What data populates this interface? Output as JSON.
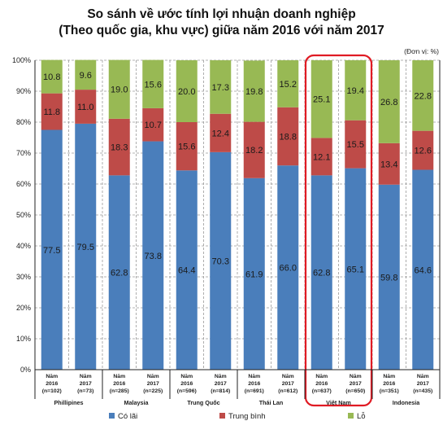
{
  "title_lines": [
    "So sánh về ước tính lợi nhuận doanh nghiệp",
    "(Theo quốc gia, khu vực) giữa năm 2016 với năm 2017"
  ],
  "unit": "(Đơn vị: %)",
  "chart_data": {
    "type": "bar",
    "stacked": true,
    "ylim": [
      0,
      100
    ],
    "yticks": [
      "0%",
      "10%",
      "20%",
      "30%",
      "40%",
      "50%",
      "60%",
      "70%",
      "80%",
      "90%",
      "100%"
    ],
    "grid": true,
    "legend_position": "bottom",
    "highlight_group": "Việt Nam",
    "categories": [
      {
        "year_label": "Năm",
        "year": "2016",
        "n": "(n=102)",
        "group": "Phillipines"
      },
      {
        "year_label": "Năm",
        "year": "2017",
        "n": "(n=73)",
        "group": "Phillipines"
      },
      {
        "year_label": "Năm",
        "year": "2016",
        "n": "(n=285)",
        "group": "Malaysia"
      },
      {
        "year_label": "Năm",
        "year": "2017",
        "n": "(n=225)",
        "group": "Malaysia"
      },
      {
        "year_label": "Năm",
        "year": "2016",
        "n": "(n=596)",
        "group": "Trung Quốc"
      },
      {
        "year_label": "Năm",
        "year": "2017",
        "n": "(n=814)",
        "group": "Trung Quốc"
      },
      {
        "year_label": "Năm",
        "year": "2016",
        "n": "(n=691)",
        "group": "Thái Lan"
      },
      {
        "year_label": "Năm",
        "year": "2017",
        "n": "(n=612)",
        "group": "Thái Lan"
      },
      {
        "year_label": "Năm",
        "year": "2016",
        "n": "(n=637)",
        "group": "Việt Nam"
      },
      {
        "year_label": "Năm",
        "year": "2017",
        "n": "(n=650)",
        "group": "Việt Nam"
      },
      {
        "year_label": "Năm",
        "year": "2016",
        "n": "(n=351)",
        "group": "Indonesia"
      },
      {
        "year_label": "Năm",
        "year": "2017",
        "n": "(n=435)",
        "group": "Indonesia"
      }
    ],
    "groups": [
      "Phillipines",
      "Malaysia",
      "Trung Quốc",
      "Thái Lan",
      "Việt Nam",
      "Indonesia"
    ],
    "series": [
      {
        "name": "Có lãi",
        "color": "#4a7ebb",
        "values": [
          77.5,
          79.5,
          62.8,
          73.8,
          64.4,
          70.3,
          61.9,
          66.0,
          62.8,
          65.1,
          59.8,
          64.6
        ],
        "labels": [
          "77.5",
          "79.5",
          "62.8",
          "73.8",
          "64.4",
          "70.3",
          "61.9",
          "66.0",
          "62.8",
          "65.1",
          "59.8",
          "64.6"
        ]
      },
      {
        "name": "Trung bình",
        "color": "#be4b48",
        "values": [
          11.8,
          11.0,
          18.3,
          10.7,
          15.6,
          12.4,
          18.2,
          18.8,
          12.1,
          15.5,
          13.4,
          12.6
        ],
        "labels": [
          "11.8",
          "11.0",
          "18.3",
          "10.7",
          "15.6",
          "12.4",
          "18.2",
          "18.8",
          "12.1",
          "15.5",
          "13.4",
          "12.6"
        ]
      },
      {
        "name": "Lỗ",
        "color": "#98b954",
        "values": [
          10.8,
          9.6,
          19.0,
          15.6,
          20.0,
          17.3,
          19.8,
          15.2,
          25.1,
          19.4,
          26.8,
          22.8
        ],
        "labels": [
          "10.8",
          "9.6",
          "19.0",
          "15.6",
          "20.0",
          "17.3",
          "19.8",
          "15.2",
          "25.1",
          "19.4",
          "26.8",
          "22.8"
        ]
      }
    ]
  }
}
